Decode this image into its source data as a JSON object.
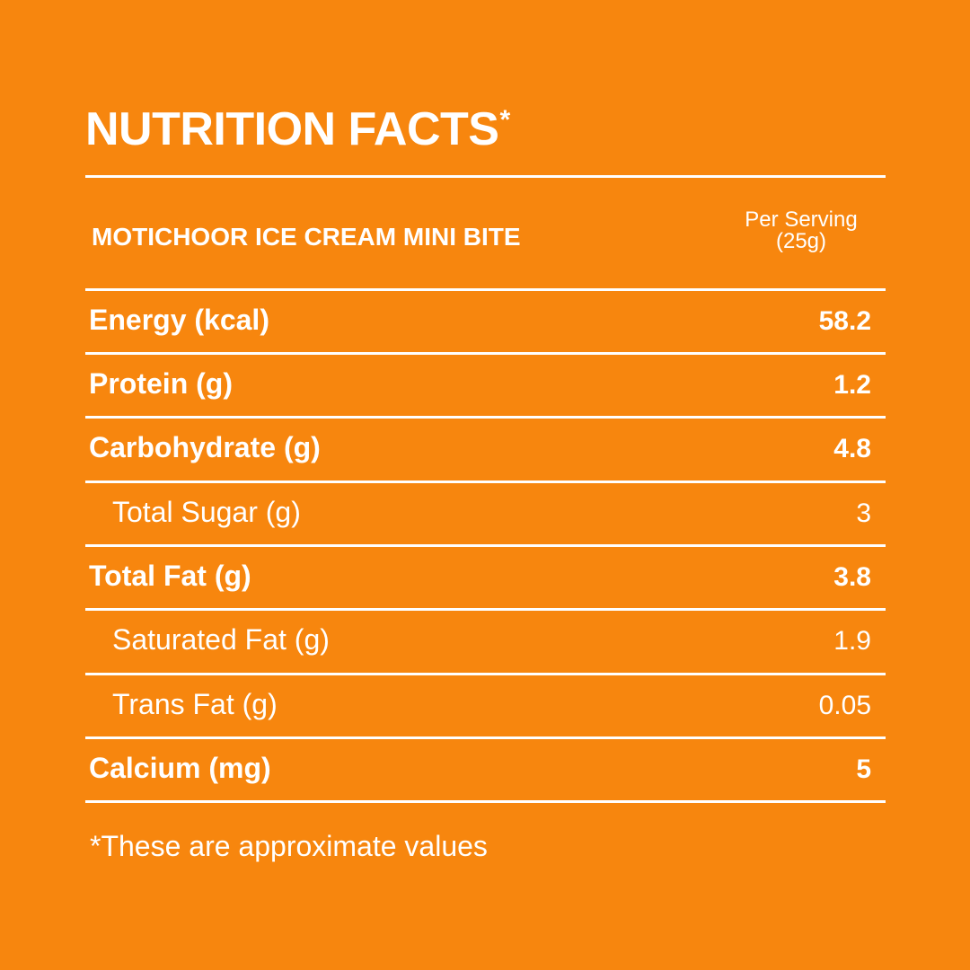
{
  "panel": {
    "title": "NUTRITION FACTS",
    "title_mark": "*",
    "product_name": "MOTICHOOR ICE CREAM MINI BITE",
    "serving_label": "Per Serving",
    "serving_size": "(25g)",
    "rows": [
      {
        "label": "Energy (kcal)",
        "value": "58.2"
      },
      {
        "label": "Protein (g)",
        "value": "1.2"
      },
      {
        "label": "Carbohydrate (g)",
        "value": "4.8"
      },
      {
        "label": "Total Sugar (g)",
        "value": "3"
      },
      {
        "label": "Total Fat (g)",
        "value": "3.8"
      },
      {
        "label": "Saturated Fat (g)",
        "value": "1.9"
      },
      {
        "label": "Trans Fat (g)",
        "value": "0.05"
      },
      {
        "label": "Calcium (mg)",
        "value": "5"
      }
    ],
    "footnote": "*These are approximate values"
  },
  "colors": {
    "background": "#F7860E",
    "text": "#FFFFFF"
  }
}
